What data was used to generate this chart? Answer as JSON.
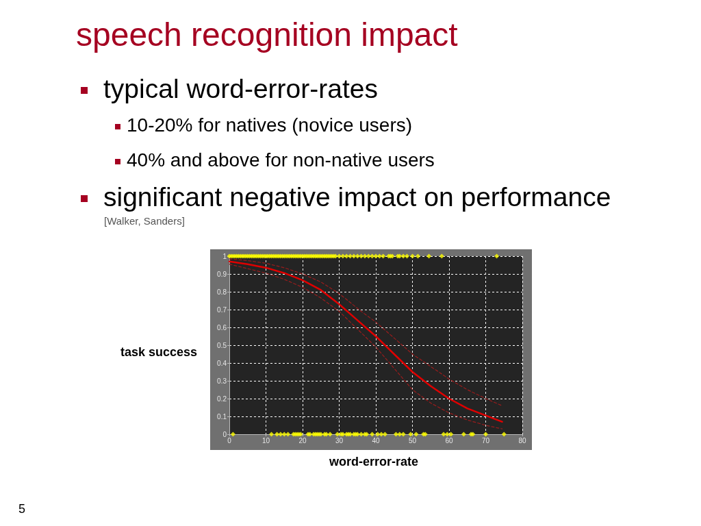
{
  "chart_data": {
    "type": "line",
    "title": "speech recognition impact",
    "xlabel": "word-error-rate",
    "ylabel": "task success",
    "annotations": [
      "typical word-error-rates",
      "10-20% for natives (novice users)",
      "40% and above for non-native users",
      "significant negative impact on performance",
      "[Walker, Sanders]",
      "5"
    ],
    "xlim": [
      0,
      80
    ],
    "xticks": [
      0,
      10,
      20,
      30,
      40,
      50,
      60,
      70,
      80
    ],
    "ylim": [
      0,
      1
    ],
    "yticks": [
      0,
      0.1,
      0.2,
      0.3,
      0.4,
      0.5,
      0.6,
      0.7,
      0.8,
      0.9,
      1
    ],
    "grid": true,
    "series": [
      {
        "type": "scatter",
        "color": "#ffff00",
        "marker": "diamond",
        "x": [
          0,
          0.5,
          1,
          1.5,
          2,
          2.5,
          3,
          3.5,
          4,
          4.5,
          5,
          5.5,
          6,
          6.5,
          7,
          7.5,
          8,
          8.5,
          9,
          9.5,
          10,
          10.5,
          11,
          11.5,
          12,
          12.5,
          13,
          13.5,
          14,
          14.5,
          15,
          15.5,
          16,
          16.5,
          17,
          17.5,
          18,
          18.5,
          19,
          19.5,
          20,
          20.5,
          21,
          21.5,
          22,
          22.5,
          23,
          23.5,
          24,
          24.5,
          25,
          25.5,
          26,
          26.5,
          27,
          27.5,
          28,
          28.5,
          29,
          30,
          31,
          32,
          33,
          34,
          35,
          36,
          37,
          38,
          39,
          40,
          41,
          42,
          43.5,
          44,
          44.5,
          46,
          46.5,
          47.5,
          48.5,
          50,
          51.5,
          54.5,
          58,
          73,
          1,
          11.5,
          13,
          14,
          15,
          16,
          17.5,
          18,
          18.5,
          19,
          19.5,
          21.5,
          22,
          23,
          23.5,
          24,
          24.5,
          25,
          26,
          26.5,
          27.5,
          29.5,
          30.5,
          31,
          32,
          32.5,
          33,
          34,
          34.5,
          35,
          36,
          37,
          37.5,
          39,
          40.5,
          41.5,
          42.5,
          45.5,
          46.5,
          47.5,
          49.5,
          51,
          53,
          53.5,
          58.5,
          59.5,
          60.5,
          64,
          66,
          66.5,
          70,
          75
        ],
        "values": [
          1,
          1,
          1,
          1,
          1,
          1,
          1,
          1,
          1,
          1,
          1,
          1,
          1,
          1,
          1,
          1,
          1,
          1,
          1,
          1,
          1,
          1,
          1,
          1,
          1,
          1,
          1,
          1,
          1,
          1,
          1,
          1,
          1,
          1,
          1,
          1,
          1,
          1,
          1,
          1,
          1,
          1,
          1,
          1,
          1,
          1,
          1,
          1,
          1,
          1,
          1,
          1,
          1,
          1,
          1,
          1,
          1,
          1,
          1,
          1,
          1,
          1,
          1,
          1,
          1,
          1,
          1,
          1,
          1,
          1,
          1,
          1,
          1,
          1,
          1,
          1,
          1,
          1,
          1,
          1,
          1,
          1,
          1,
          1,
          0,
          0,
          0,
          0,
          0,
          0,
          0,
          0,
          0,
          0,
          0,
          0,
          0,
          0,
          0,
          0,
          0,
          0,
          0,
          0,
          0,
          0,
          0,
          0,
          0,
          0,
          0,
          0,
          0,
          0,
          0,
          0,
          0,
          0,
          0,
          0,
          0,
          0,
          0,
          0,
          0,
          0,
          0,
          0,
          0,
          0,
          0,
          0,
          0,
          0,
          0,
          0
        ]
      },
      {
        "color": "#e00000",
        "marker": "none",
        "line_style": "solid",
        "x": [
          0,
          5,
          10,
          15,
          20,
          25,
          30,
          35,
          40,
          45,
          50,
          55,
          60,
          65,
          70,
          74.5
        ],
        "values": [
          0.97,
          0.955,
          0.935,
          0.905,
          0.865,
          0.81,
          0.73,
          0.64,
          0.55,
          0.45,
          0.35,
          0.27,
          0.2,
          0.145,
          0.105,
          0.07
        ]
      },
      {
        "color": "#9b1c1c",
        "marker": "none",
        "line_style": "dashed",
        "x": [
          0,
          5,
          10,
          15,
          20,
          25,
          30,
          36,
          40,
          45,
          50,
          55,
          60,
          65,
          70,
          74.5
        ],
        "values": [
          0.985,
          0.975,
          0.96,
          0.935,
          0.9,
          0.855,
          0.79,
          0.69,
          0.63,
          0.54,
          0.45,
          0.38,
          0.31,
          0.25,
          0.2,
          0.16
        ]
      },
      {
        "color": "#9b1c1c",
        "marker": "none",
        "line_style": "dashed",
        "x": [
          0,
          5,
          10,
          15,
          20,
          25,
          30,
          35,
          40,
          45,
          50,
          55,
          60,
          65,
          70,
          74.5
        ],
        "values": [
          0.955,
          0.93,
          0.905,
          0.87,
          0.825,
          0.765,
          0.69,
          0.59,
          0.49,
          0.37,
          0.25,
          0.175,
          0.12,
          0.08,
          0.05,
          0.03
        ]
      }
    ]
  }
}
